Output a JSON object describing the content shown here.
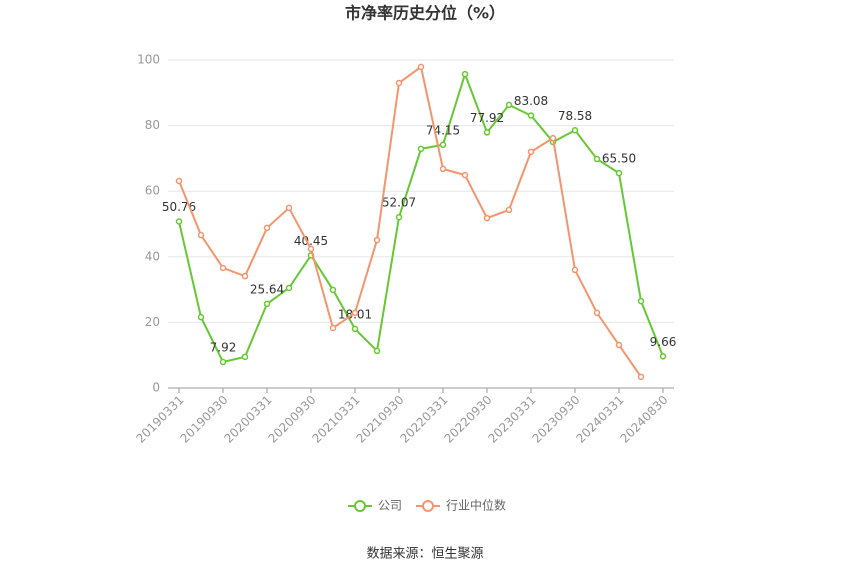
{
  "chart_data": {
    "type": "line",
    "title": "市净率历史分位（%）",
    "categories": [
      "20190331",
      null,
      "20190930",
      null,
      "20200331",
      null,
      "20200930",
      null,
      "20210331",
      null,
      "20210930",
      null,
      "20220331",
      null,
      "20220930",
      null,
      "20230331",
      null,
      "20230930",
      null,
      "20240331",
      null,
      "20240830"
    ],
    "series": [
      {
        "name": "公司",
        "color": "#66c832",
        "values": [
          50.76,
          21.6,
          7.92,
          9.5,
          25.64,
          30.5,
          40.45,
          29.9,
          18.01,
          11.3,
          52.07,
          72.9,
          74.15,
          95.7,
          77.92,
          86.3,
          83.08,
          75.0,
          78.58,
          69.8,
          65.5,
          26.5,
          9.66
        ],
        "value_labels": [
          "50.76",
          null,
          "7.92",
          null,
          "25.64",
          null,
          "40.45",
          null,
          "18.01",
          null,
          "52.07",
          null,
          "74.15",
          null,
          "77.92",
          null,
          "83.08",
          null,
          "78.58",
          null,
          "65.50",
          null,
          "9.66"
        ]
      },
      {
        "name": "行业中位数",
        "color": "#f4956d",
        "values": [
          63.1,
          46.6,
          36.6,
          34.1,
          48.8,
          54.9,
          42.4,
          18.3,
          22.9,
          45.1,
          93.0,
          97.9,
          66.8,
          64.9,
          51.8,
          54.3,
          72.0,
          76.2,
          36.0,
          22.9,
          13.1,
          3.4,
          null
        ]
      }
    ],
    "ylim": [
      0,
      100
    ],
    "yticks": [
      0,
      20,
      40,
      60,
      80,
      100
    ],
    "grid": true
  },
  "source": "数据来源：恒生聚源"
}
